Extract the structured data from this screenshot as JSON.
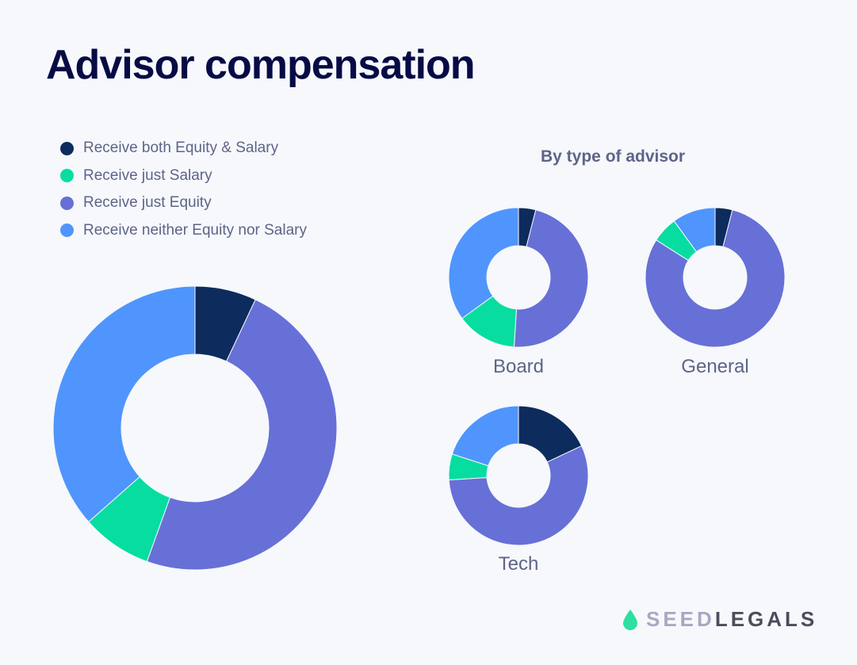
{
  "header": {
    "title": "Advisor compensation"
  },
  "legend": {
    "items": [
      {
        "label": "Receive both Equity &  Salary",
        "color": "#0d2b5c"
      },
      {
        "label": "Receive just Salary",
        "color": "#07dda0"
      },
      {
        "label": "Receive just Equity",
        "color": "#6770d6"
      },
      {
        "label": "Receive neither Equity nor Salary",
        "color": "#4f95fd"
      }
    ]
  },
  "subtitle": "By type of advisor",
  "charts": {
    "board": {
      "label": "Board"
    },
    "general": {
      "label": "General"
    },
    "tech": {
      "label": "Tech"
    }
  },
  "logo": {
    "part1": "SEED",
    "part2": "LEGALS",
    "color": "#2ddfa0"
  },
  "chart_data": [
    {
      "type": "pie",
      "title": "Advisor compensation (all advisors)",
      "categories": [
        "Receive both Equity & Salary",
        "Receive just Equity",
        "Receive just Salary",
        "Receive neither Equity nor Salary"
      ],
      "values": [
        7,
        48.5,
        8,
        36.5
      ],
      "colors": [
        "#0d2b5c",
        "#6770d6",
        "#07dda0",
        "#4f95fd"
      ],
      "donut": true,
      "legend_position": "top-left"
    },
    {
      "type": "pie",
      "title": "Board",
      "categories": [
        "Receive both Equity & Salary",
        "Receive just Equity",
        "Receive just Salary",
        "Receive neither Equity nor Salary"
      ],
      "values": [
        4,
        47,
        14,
        35
      ],
      "donut": true
    },
    {
      "type": "pie",
      "title": "General",
      "categories": [
        "Receive both Equity & Salary",
        "Receive just Equity",
        "Receive just Salary",
        "Receive neither Equity nor Salary"
      ],
      "values": [
        4,
        80,
        6,
        10
      ],
      "donut": true
    },
    {
      "type": "pie",
      "title": "Tech",
      "categories": [
        "Receive both Equity & Salary",
        "Receive just Equity",
        "Receive just Salary",
        "Receive neither Equity nor Salary"
      ],
      "values": [
        18,
        56,
        6,
        20
      ],
      "donut": true
    }
  ]
}
